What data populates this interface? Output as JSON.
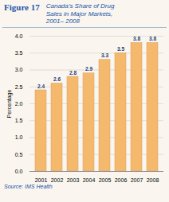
{
  "chart_data": {
    "type": "bar",
    "title": "Canada’s Share of Drug\nSales in Major Markets,\n2001– 2008",
    "annotations": [
      "Figure 17",
      "Source: IMS Health"
    ],
    "ylabel": "Percentage",
    "categories": [
      "2001",
      "2002",
      "2003",
      "2004",
      "2005",
      "2006",
      "2007",
      "2008"
    ],
    "values": [
      2.4,
      2.6,
      2.8,
      2.9,
      3.3,
      3.5,
      3.8,
      3.8
    ],
    "color": "#F5B96E",
    "ylim": [
      0,
      4.0
    ],
    "yticks": [
      {
        "value": 0,
        "label": "0.0"
      },
      0.5,
      {
        "value": 1,
        "label": "1.0"
      },
      1.5,
      {
        "value": 2,
        "label": "2.0"
      },
      2.5,
      {
        "value": 3,
        "label": "3.0"
      },
      3.5,
      {
        "value": 4,
        "label": "4.0"
      }
    ],
    "grid": true,
    "data_labels": true
  }
}
